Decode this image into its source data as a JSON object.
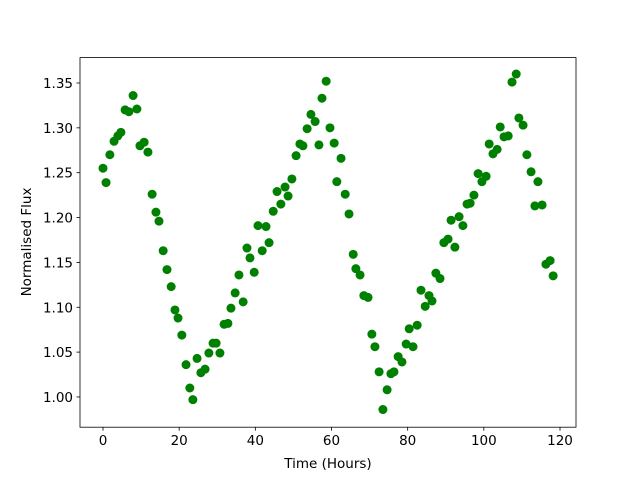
{
  "chart_data": {
    "type": "scatter",
    "xlabel": "Time (Hours)",
    "ylabel": "Normalised Flux",
    "color": "#008000",
    "xlim": [
      -6.04,
      124.2
    ],
    "ylim": [
      0.9663,
      1.3783
    ],
    "xticks": [
      0,
      20,
      40,
      60,
      80,
      100,
      120
    ],
    "yticks": [
      {
        "value": 1.0,
        "label": "1.00"
      },
      1.05,
      {
        "value": 1.1,
        "label": "1.10"
      },
      1.15,
      {
        "value": 1.2,
        "label": "1.20"
      },
      1.25,
      {
        "value": 1.3,
        "label": "1.30"
      },
      1.35
    ],
    "x": [
      0,
      0.8,
      1.8,
      2.9,
      3.9,
      4.7,
      5.8,
      6.8,
      7.9,
      8.9,
      9.7,
      10.8,
      11.8,
      12.9,
      13.9,
      14.7,
      15.8,
      16.8,
      17.9,
      18.9,
      19.7,
      20.7,
      21.8,
      22.8,
      23.6,
      24.7,
      25.7,
      26.8,
      27.8,
      28.9,
      29.7,
      30.7,
      31.8,
      32.8,
      33.6,
      34.7,
      35.7,
      36.8,
      37.8,
      38.6,
      39.7,
      40.7,
      41.8,
      42.8,
      43.6,
      44.7,
      45.7,
      46.7,
      47.8,
      48.6,
      49.6,
      50.7,
      51.7,
      52.5,
      53.6,
      54.6,
      55.7,
      56.7,
      57.5,
      58.6,
      59.6,
      60.7,
      61.4,
      62.5,
      63.6,
      64.6,
      65.7,
      66.4,
      67.5,
      68.5,
      69.6,
      70.6,
      71.4,
      72.5,
      73.5,
      74.6,
      75.6,
      76.4,
      77.5,
      78.5,
      79.6,
      80.4,
      81.4,
      82.5,
      83.5,
      84.6,
      85.6,
      86.4,
      87.4,
      88.5,
      89.5,
      90.6,
      91.4,
      92.4,
      93.5,
      94.5,
      95.6,
      96.4,
      97.4,
      98.5,
      99.5,
      100.6,
      101.4,
      102.4,
      103.5,
      104.3,
      105.3,
      106.4,
      107.4,
      108.5,
      109.2,
      110.3,
      111.3,
      112.4,
      113.4,
      114.2,
      115.3,
      116.3,
      117.4,
      118.2
    ],
    "values": [
      1.255,
      1.239,
      1.27,
      1.285,
      1.291,
      1.295,
      1.32,
      1.318,
      1.336,
      1.321,
      1.28,
      1.284,
      1.273,
      1.226,
      1.206,
      1.196,
      1.163,
      1.142,
      1.123,
      1.097,
      1.088,
      1.069,
      1.036,
      1.01,
      0.997,
      1.043,
      1.027,
      1.031,
      1.049,
      1.06,
      1.06,
      1.049,
      1.081,
      1.082,
      1.099,
      1.116,
      1.136,
      1.106,
      1.166,
      1.155,
      1.139,
      1.191,
      1.163,
      1.19,
      1.172,
      1.207,
      1.229,
      1.215,
      1.234,
      1.224,
      1.243,
      1.269,
      1.282,
      1.28,
      1.299,
      1.315,
      1.307,
      1.281,
      1.333,
      1.352,
      1.3,
      1.283,
      1.24,
      1.266,
      1.226,
      1.204,
      1.159,
      1.143,
      1.136,
      1.113,
      1.111,
      1.07,
      1.056,
      1.028,
      0.986,
      1.008,
      1.026,
      1.028,
      1.045,
      1.039,
      1.059,
      1.076,
      1.056,
      1.08,
      1.119,
      1.101,
      1.113,
      1.107,
      1.138,
      1.132,
      1.172,
      1.176,
      1.197,
      1.167,
      1.201,
      1.191,
      1.215,
      1.216,
      1.225,
      1.249,
      1.24,
      1.246,
      1.282,
      1.271,
      1.276,
      1.301,
      1.29,
      1.291,
      1.351,
      1.36,
      1.311,
      1.303,
      1.27,
      1.251,
      1.213,
      1.24,
      1.214,
      1.148,
      1.152,
      1.135
    ]
  }
}
